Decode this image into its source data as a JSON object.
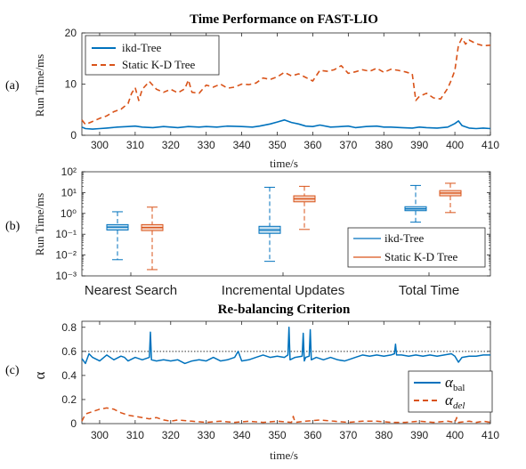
{
  "colors": {
    "ikd": "#0072BD",
    "static": "#D95319",
    "axis": "#262626",
    "ref": "#333333"
  },
  "panels": {
    "a": {
      "label": "(a)"
    },
    "b": {
      "label": "(b)"
    },
    "c": {
      "label": "(c)"
    }
  },
  "chart_data": [
    {
      "type": "line",
      "title": "Time Performance on FAST-LIO",
      "xlabel": "time/s",
      "ylabel": "Run Time/ms",
      "xlim": [
        295,
        410
      ],
      "ylim": [
        0,
        20
      ],
      "xticks": [
        "300",
        "310",
        "320",
        "330",
        "340",
        "350",
        "360",
        "370",
        "380",
        "390",
        "400",
        "410"
      ],
      "yticks": [
        "0",
        "10",
        "20"
      ],
      "legend_position": "top-left",
      "series": [
        {
          "name": "ikd-Tree",
          "x": [
            295,
            296,
            298,
            300,
            302,
            305,
            308,
            310,
            312,
            315,
            318,
            320,
            322,
            325,
            328,
            330,
            333,
            336,
            340,
            343,
            345,
            348,
            350,
            352,
            354,
            356,
            358,
            360,
            362,
            365,
            368,
            370,
            372,
            375,
            378,
            380,
            382,
            385,
            388,
            390,
            392,
            395,
            398,
            400,
            401,
            402,
            404,
            406,
            408,
            410
          ],
          "y": [
            1.6,
            1.3,
            1.2,
            1.3,
            1.4,
            1.6,
            1.7,
            1.8,
            1.6,
            1.5,
            1.7,
            1.6,
            1.5,
            1.7,
            1.6,
            1.7,
            1.6,
            1.8,
            1.7,
            1.6,
            1.8,
            2.2,
            2.6,
            3.0,
            2.5,
            2.2,
            1.8,
            1.7,
            2.0,
            1.6,
            1.7,
            1.8,
            1.5,
            1.7,
            1.8,
            1.6,
            1.6,
            1.5,
            1.4,
            1.6,
            1.5,
            1.4,
            1.6,
            2.3,
            2.8,
            1.9,
            1.4,
            1.3,
            1.4,
            1.3
          ]
        },
        {
          "name": "Static K-D Tree",
          "x": [
            295,
            296,
            298,
            300,
            302,
            304,
            306,
            308,
            309,
            310,
            311,
            312,
            314,
            316,
            318,
            320,
            322,
            324,
            325,
            326,
            328,
            330,
            332,
            334,
            336,
            338,
            340,
            342,
            344,
            346,
            348,
            350,
            352,
            354,
            356,
            358,
            360,
            362,
            364,
            366,
            368,
            370,
            372,
            374,
            376,
            378,
            380,
            382,
            384,
            386,
            388,
            389,
            390,
            392,
            394,
            396,
            398,
            399,
            400,
            401,
            402,
            403,
            404,
            406,
            408,
            410
          ],
          "y": [
            3.0,
            2.1,
            2.7,
            3.3,
            3.8,
            4.6,
            5.1,
            6.2,
            8.2,
            9.3,
            6.8,
            9.0,
            10.5,
            9.0,
            8.4,
            9.0,
            8.3,
            9.1,
            10.8,
            8.4,
            8.2,
            9.8,
            9.4,
            10.0,
            9.2,
            9.4,
            10.0,
            9.9,
            10.2,
            11.2,
            10.9,
            11.4,
            12.3,
            11.6,
            12.0,
            11.3,
            10.6,
            12.7,
            12.5,
            12.8,
            13.6,
            12.1,
            12.4,
            12.8,
            12.5,
            13.1,
            12.3,
            12.9,
            12.7,
            12.4,
            12.0,
            6.8,
            7.6,
            8.2,
            7.3,
            7.1,
            9.2,
            10.8,
            12.7,
            17.6,
            19.0,
            17.8,
            18.6,
            17.9,
            17.5,
            17.6
          ]
        }
      ]
    },
    {
      "type": "box",
      "ylabel": "Run Time/ms",
      "yscale": "log",
      "ylim": [
        0.001,
        100
      ],
      "yticks": [
        "10⁻³",
        "10⁻²",
        "10⁻¹",
        "10⁰",
        "10¹",
        "10²"
      ],
      "categories": [
        "Nearest Search",
        "Incremental Updates",
        "Total Time"
      ],
      "legend_position": "bottom-right",
      "series": [
        {
          "name": "ikd-Tree",
          "boxes": [
            {
              "min": 0.006,
              "q1": 0.16,
              "median": 0.22,
              "q3": 0.29,
              "max": 1.2
            },
            {
              "min": 0.005,
              "q1": 0.11,
              "median": 0.16,
              "q3": 0.24,
              "max": 18
            },
            {
              "min": 0.38,
              "q1": 1.35,
              "median": 1.65,
              "q3": 2.1,
              "max": 22
            }
          ]
        },
        {
          "name": "Static K-D Tree",
          "boxes": [
            {
              "min": 0.002,
              "q1": 0.15,
              "median": 0.21,
              "q3": 0.29,
              "max": 2.0
            },
            {
              "min": 0.17,
              "q1": 3.6,
              "median": 5.0,
              "q3": 7.0,
              "max": 20
            },
            {
              "min": 1.1,
              "q1": 7.0,
              "median": 9.5,
              "q3": 12.5,
              "max": 28
            }
          ]
        }
      ]
    },
    {
      "type": "line",
      "title": "Re-balancing Criterion",
      "xlabel": "time/s",
      "ylabel": "α",
      "xlim": [
        295,
        410
      ],
      "ylim": [
        0,
        0.85
      ],
      "xticks": [
        "300",
        "310",
        "320",
        "330",
        "340",
        "350",
        "360",
        "370",
        "380",
        "390",
        "400",
        "410"
      ],
      "yticks": [
        "0",
        "0.2",
        "0.4",
        "0.6",
        "0.8"
      ],
      "reference_line": 0.6,
      "legend_position": "bottom-right",
      "series": [
        {
          "name": "α_bal",
          "x": [
            295,
            296,
            297,
            298,
            300,
            302,
            304,
            306,
            307,
            308,
            310,
            312,
            314,
            314.3,
            314.6,
            316,
            318,
            320,
            322,
            324,
            326,
            328,
            330,
            332,
            334,
            336,
            338,
            339,
            340,
            342,
            344,
            346,
            348,
            350,
            352,
            353,
            353.3,
            353.6,
            355,
            357,
            357.3,
            357.6,
            358,
            359,
            359.3,
            359.6,
            361,
            363,
            365,
            367,
            369,
            370,
            372,
            374,
            376,
            378,
            380,
            382,
            383,
            383.3,
            383.6,
            385,
            387,
            389,
            391,
            393,
            395,
            397,
            399,
            400,
            401,
            402,
            404,
            406,
            408,
            410
          ],
          "y": [
            0.54,
            0.5,
            0.58,
            0.55,
            0.52,
            0.57,
            0.53,
            0.56,
            0.55,
            0.52,
            0.55,
            0.53,
            0.55,
            0.76,
            0.53,
            0.52,
            0.53,
            0.52,
            0.53,
            0.5,
            0.52,
            0.53,
            0.52,
            0.55,
            0.52,
            0.53,
            0.55,
            0.6,
            0.52,
            0.53,
            0.55,
            0.57,
            0.55,
            0.56,
            0.55,
            0.57,
            0.8,
            0.53,
            0.55,
            0.56,
            0.75,
            0.52,
            0.55,
            0.56,
            0.78,
            0.53,
            0.55,
            0.53,
            0.55,
            0.53,
            0.52,
            0.53,
            0.55,
            0.57,
            0.56,
            0.57,
            0.56,
            0.57,
            0.58,
            0.66,
            0.57,
            0.57,
            0.56,
            0.57,
            0.56,
            0.57,
            0.56,
            0.57,
            0.58,
            0.56,
            0.51,
            0.55,
            0.56,
            0.56,
            0.57,
            0.57
          ]
        },
        {
          "name": "α_del",
          "x": [
            295,
            296,
            298,
            300,
            302,
            304,
            306,
            308,
            310,
            312,
            314,
            316,
            318,
            320,
            322,
            326,
            330,
            334,
            338,
            342,
            346,
            350,
            354,
            354.5,
            355,
            358,
            362,
            366,
            370,
            374,
            378,
            382,
            386,
            390,
            394,
            398,
            400,
            400.5,
            401,
            404,
            406,
            408,
            410
          ],
          "y": [
            0.02,
            0.08,
            0.1,
            0.12,
            0.13,
            0.12,
            0.09,
            0.07,
            0.06,
            0.05,
            0.04,
            0.05,
            0.03,
            0.02,
            0.03,
            0.02,
            0.01,
            0.02,
            0.01,
            0.02,
            0.01,
            0.02,
            0.01,
            0.06,
            0.01,
            0.02,
            0.03,
            0.02,
            0.01,
            0.02,
            0.02,
            0.01,
            0.01,
            0.02,
            0.01,
            0.02,
            0.01,
            0.05,
            0.01,
            0.02,
            0.01,
            0.02,
            0.01
          ]
        }
      ]
    }
  ],
  "legend_text": {
    "a_ikd": "ikd-Tree",
    "a_static": "Static K-D Tree",
    "b_ikd": "ikd-Tree",
    "b_static": "Static K-D Tree",
    "c_bal_base": "α",
    "c_bal_sub": "bal",
    "c_del_base": "α",
    "c_del_sub": "del"
  }
}
